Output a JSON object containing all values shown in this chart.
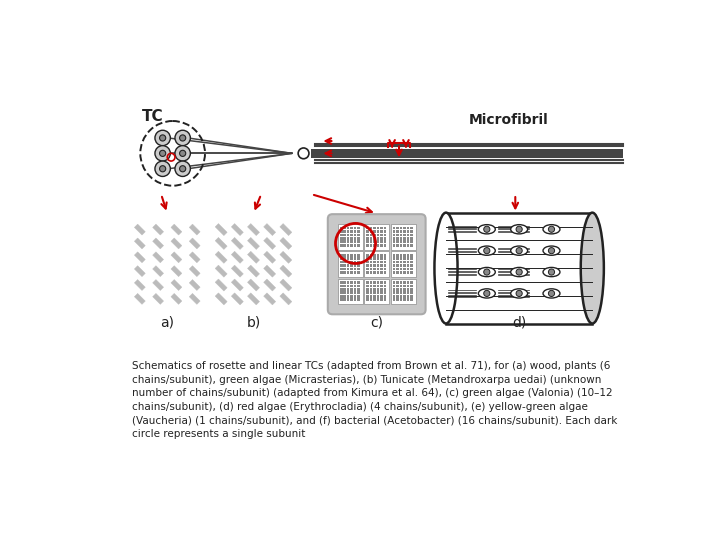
{
  "background_color": "#ffffff",
  "caption": "Schematics of rosette and linear TCs (adapted from Brown et al. 71), for (a) wood, plants (6\nchains/subunit), green algae (Micrasterias), (b) Tunicate (Metandroxarpa uedai) (unknown\nnumber of chains/subunit) (adapted from Kimura et al. 64), (c) green algae (Valonia) (10–12\nchains/subunit), (d) red algae (Erythrocladia) (4 chains/subunit), (e) yellow-green algae\n(Vaucheria) (1 chains/subunit), and (f) bacterial (Acetobacter) (16 chains/subunit). Each dark\ncircle represents a single subunit",
  "caption_fontsize": 7.5,
  "label_a": "a)",
  "label_b": "b)",
  "label_c": "c)",
  "label_d": "d)",
  "tc_label": "TC",
  "microfibril_label": "Microfibril",
  "arrow_color": "#cc0000",
  "line_color": "#222222",
  "gray_light": "#bbbbbb",
  "gray_mid": "#888888",
  "gray_dark": "#444444",
  "rosette_fill": "#cccccc",
  "rosette_edge": "#333333"
}
